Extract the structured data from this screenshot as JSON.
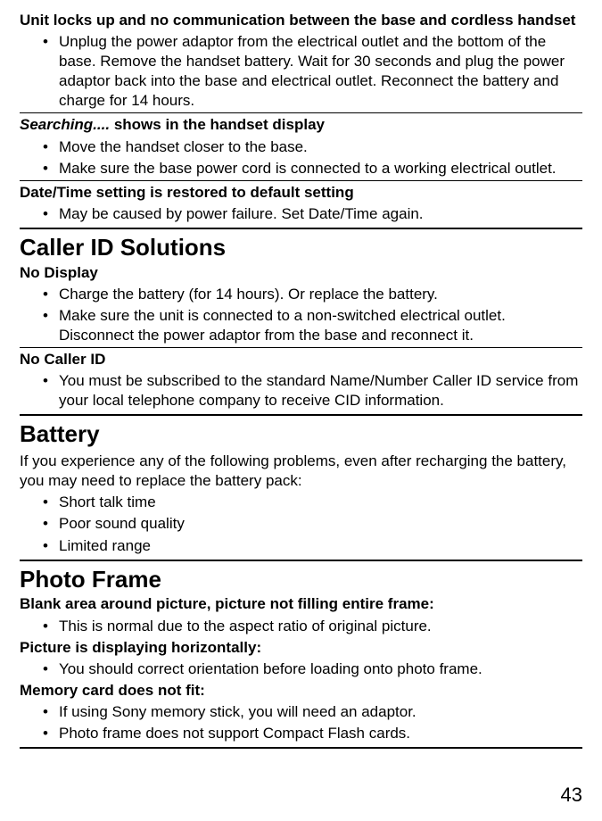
{
  "troubleshooting": {
    "unit_locks": {
      "heading": "Unit locks up and no communication between the base and cordless handset",
      "items": [
        "Unplug the power adaptor from the electrical outlet and the bottom of the base. Remove the handset battery. Wait for 30 seconds and plug the power adaptor back into the base and electrical outlet. Reconnect the battery and charge for 14 hours."
      ]
    },
    "searching": {
      "prefix": "Searching....",
      "rest": " shows in the handset display",
      "items": [
        "Move the handset closer to the base.",
        "Make sure the base power cord is connected to a working electrical outlet."
      ]
    },
    "datetime": {
      "heading": "Date/Time setting is restored to default setting",
      "items": [
        "May be caused by power failure. Set Date/Time again."
      ]
    }
  },
  "caller_id": {
    "heading": "Caller ID Solutions",
    "no_display": {
      "heading": "No Display",
      "items": [
        "Charge the battery (for 14 hours). Or replace the battery.",
        "Make sure the unit is connected to a non-switched electrical outlet. Disconnect the power adaptor from the base and reconnect it."
      ]
    },
    "no_caller_id": {
      "heading": "No Caller ID",
      "items": [
        "You must be subscribed to the standard Name/Number Caller ID service from your local telephone company to receive CID information."
      ]
    }
  },
  "battery": {
    "heading": "Battery",
    "intro": "If you experience any of the following problems, even after recharging the battery, you may need to replace the battery pack:",
    "items": [
      "Short talk time",
      "Poor sound quality",
      "Limited range"
    ]
  },
  "photo_frame": {
    "heading": "Photo Frame",
    "blank_area": {
      "heading": "Blank area around picture, picture not filling entire frame:",
      "items": [
        "This is normal due to the aspect ratio of original picture."
      ]
    },
    "horizontal": {
      "heading": "Picture is displaying horizontally:",
      "items": [
        "You should correct orientation before loading onto photo frame."
      ]
    },
    "memory_card": {
      "heading": "Memory card does not fit:",
      "items": [
        "If using Sony memory stick, you will need an adaptor.",
        "Photo frame does not support Compact Flash cards."
      ]
    }
  },
  "page_number": "43"
}
